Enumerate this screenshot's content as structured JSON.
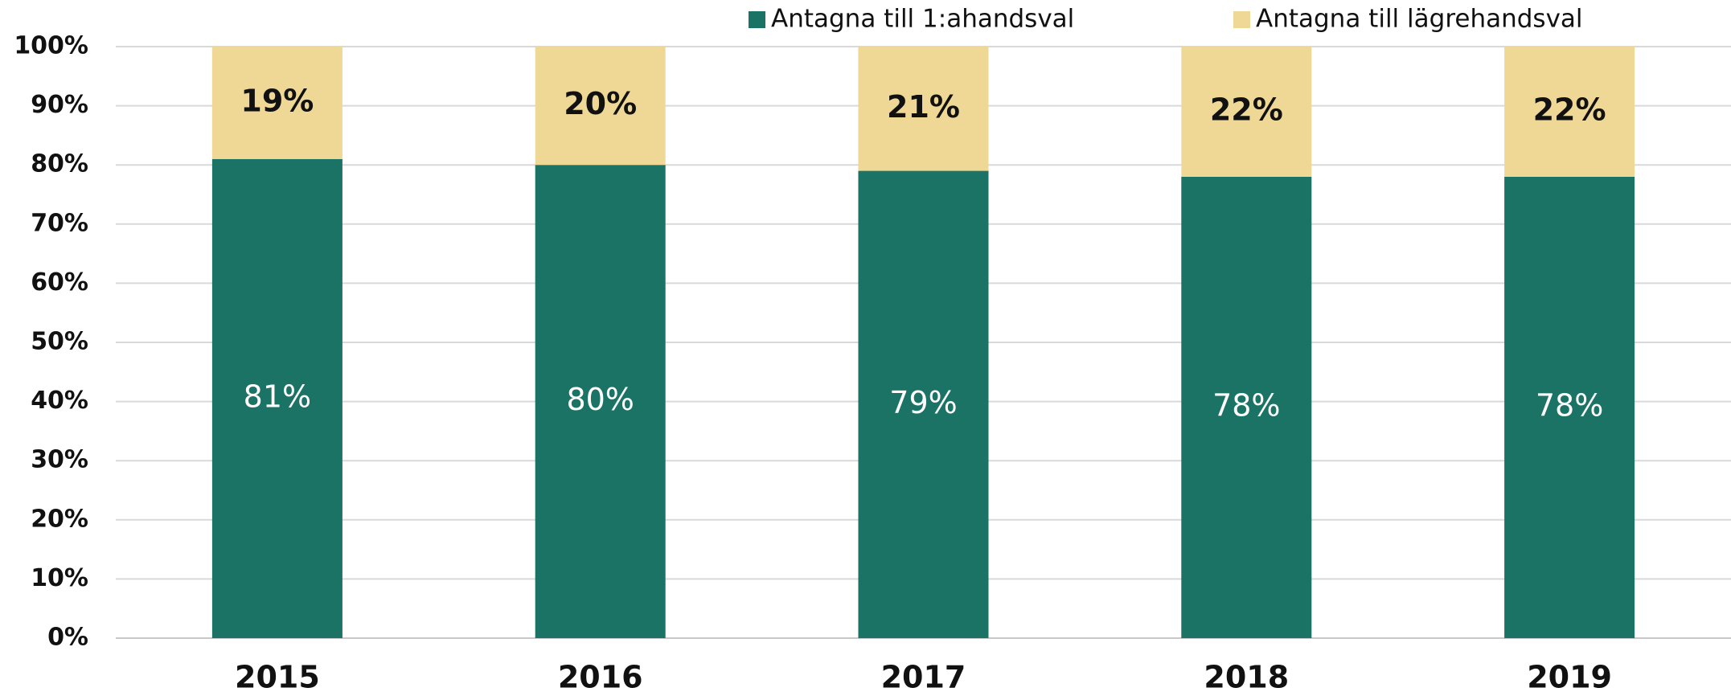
{
  "chart_data": {
    "type": "stacked_bar",
    "categories": [
      "2015",
      "2016",
      "2017",
      "2018",
      "2019"
    ],
    "series": [
      {
        "name": "Antagna till 1:ahandsval",
        "color": "#1b7366",
        "values": [
          81,
          80,
          79,
          78,
          78
        ],
        "value_labels": [
          "81%",
          "80%",
          "79%",
          "78%",
          "78%"
        ]
      },
      {
        "name": "Antagna till lägrehandsval",
        "color": "#efd896",
        "values": [
          19,
          20,
          21,
          22,
          22
        ],
        "value_labels": [
          "19%",
          "20%",
          "21%",
          "22%",
          "22%"
        ]
      }
    ],
    "ylim": [
      0,
      100
    ],
    "yticks": [
      {
        "value": 0,
        "label": "0%"
      },
      {
        "value": 10,
        "label": "10%"
      },
      {
        "value": 20,
        "label": "20%"
      },
      {
        "value": 30,
        "label": "30%"
      },
      {
        "value": 40,
        "label": "40%"
      },
      {
        "value": 50,
        "label": "50%"
      },
      {
        "value": 60,
        "label": "60%"
      },
      {
        "value": 70,
        "label": "70%"
      },
      {
        "value": 80,
        "label": "80%"
      },
      {
        "value": 90,
        "label": "90%"
      },
      {
        "value": 100,
        "label": "100%"
      }
    ],
    "grid": true,
    "legend": "top"
  }
}
